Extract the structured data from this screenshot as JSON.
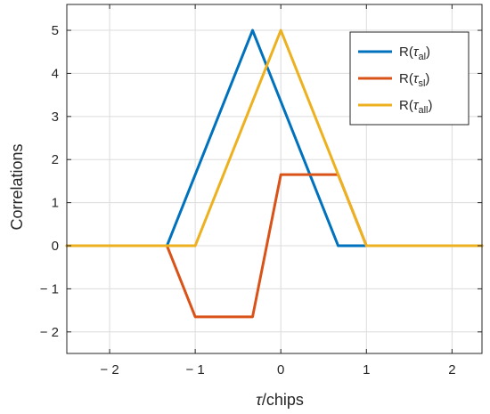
{
  "chart_data": {
    "type": "line",
    "xlabel_tau": "τ",
    "xlabel_rest": "/chips",
    "ylabel": "Correlations",
    "xlim": [
      -2.5,
      2.35
    ],
    "ylim": [
      -2.5,
      5.6
    ],
    "x_ticks": [
      -2,
      -1,
      0,
      1,
      2
    ],
    "x_tick_labels": [
      "− 2",
      "− 1",
      "0",
      "1",
      "2"
    ],
    "y_ticks": [
      -2,
      -1,
      0,
      1,
      2,
      3,
      4,
      5
    ],
    "y_tick_labels": [
      "− 2",
      "− 1",
      "0",
      "1",
      "2",
      "3",
      "4",
      "5"
    ],
    "grid": true,
    "legend_position": "top-right",
    "series": [
      {
        "label_prefix": "R(",
        "label_tau": "τ",
        "label_sub": "al",
        "label_suffix": ")",
        "color": "#0072BD",
        "x": [
          -2.5,
          -1.33,
          -0.33,
          0.67,
          2.35
        ],
        "y": [
          0,
          0,
          5,
          0,
          0
        ]
      },
      {
        "label_prefix": "R(",
        "label_tau": "τ",
        "label_sub": "sl",
        "label_suffix": ")",
        "color": "#D95319",
        "x": [
          -2.5,
          -1.33,
          -1.0,
          -0.33,
          0.0,
          0.67,
          0.67,
          1.0,
          2.35
        ],
        "y": [
          0,
          0,
          -1.65,
          -1.65,
          1.65,
          1.65,
          1.65,
          0,
          0
        ]
      },
      {
        "label_prefix": "R(",
        "label_tau": "τ",
        "label_sub": "all",
        "label_suffix": ")",
        "color": "#EDB120",
        "x": [
          -2.5,
          -1.0,
          0.0,
          1.0,
          2.35
        ],
        "y": [
          0,
          0,
          5,
          0,
          0
        ]
      }
    ]
  }
}
